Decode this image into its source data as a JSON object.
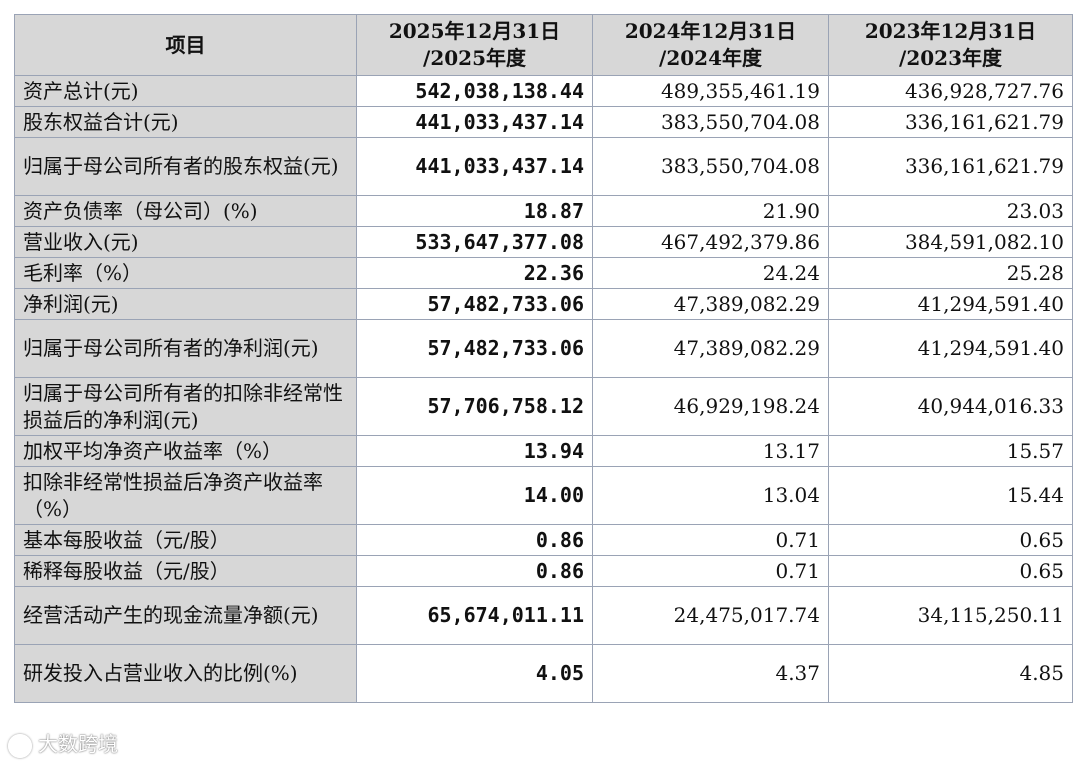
{
  "table": {
    "headers": [
      [
        "项目"
      ],
      [
        "2025年12月31日",
        "/2025年度"
      ],
      [
        "2024年12月31日",
        "/2024年度"
      ],
      [
        "2023年12月31日",
        "/2023年度"
      ]
    ],
    "rows": [
      {
        "label": "资产总计(元)",
        "v2025": "542,038,138.44",
        "v2024": "489,355,461.19",
        "v2023": "436,928,727.76"
      },
      {
        "label": "股东权益合计(元)",
        "v2025": "441,033,437.14",
        "v2024": "383,550,704.08",
        "v2023": "336,161,621.79"
      },
      {
        "label": "归属于母公司所有者的股东权益(元)",
        "v2025": "441,033,437.14",
        "v2024": "383,550,704.08",
        "v2023": "336,161,621.79"
      },
      {
        "label": "资产负债率（母公司）(%)",
        "v2025": "18.87",
        "v2024": "21.90",
        "v2023": "23.03"
      },
      {
        "label": "营业收入(元)",
        "v2025": "533,647,377.08",
        "v2024": "467,492,379.86",
        "v2023": "384,591,082.10"
      },
      {
        "label": "毛利率（%）",
        "v2025": "22.36",
        "v2024": "24.24",
        "v2023": "25.28"
      },
      {
        "label": "净利润(元)",
        "v2025": "57,482,733.06",
        "v2024": "47,389,082.29",
        "v2023": "41,294,591.40"
      },
      {
        "label": "归属于母公司所有者的净利润(元)",
        "v2025": "57,482,733.06",
        "v2024": "47,389,082.29",
        "v2023": "41,294,591.40"
      },
      {
        "label": "归属于母公司所有者的扣除非经常性损益后的净利润(元)",
        "v2025": "57,706,758.12",
        "v2024": "46,929,198.24",
        "v2023": "40,944,016.33"
      },
      {
        "label": "加权平均净资产收益率（%）",
        "v2025": "13.94",
        "v2024": "13.17",
        "v2023": "15.57"
      },
      {
        "label": "扣除非经常性损益后净资产收益率（%）",
        "v2025": "14.00",
        "v2024": "13.04",
        "v2023": "15.44"
      },
      {
        "label": "基本每股收益（元/股）",
        "v2025": "0.86",
        "v2024": "0.71",
        "v2023": "0.65"
      },
      {
        "label": "稀释每股收益（元/股）",
        "v2025": "0.86",
        "v2024": "0.71",
        "v2023": "0.65"
      },
      {
        "label": "经营活动产生的现金流量净额(元)",
        "v2025": "65,674,011.11",
        "v2024": "24,475,017.74",
        "v2023": "34,115,250.11"
      },
      {
        "label": "研发投入占营业收入的比例(%)",
        "v2025": "4.05",
        "v2024": "4.37",
        "v2023": "4.85"
      }
    ]
  },
  "watermark": {
    "text": "大数跨境",
    "icon": "watermark-logo-icon"
  }
}
